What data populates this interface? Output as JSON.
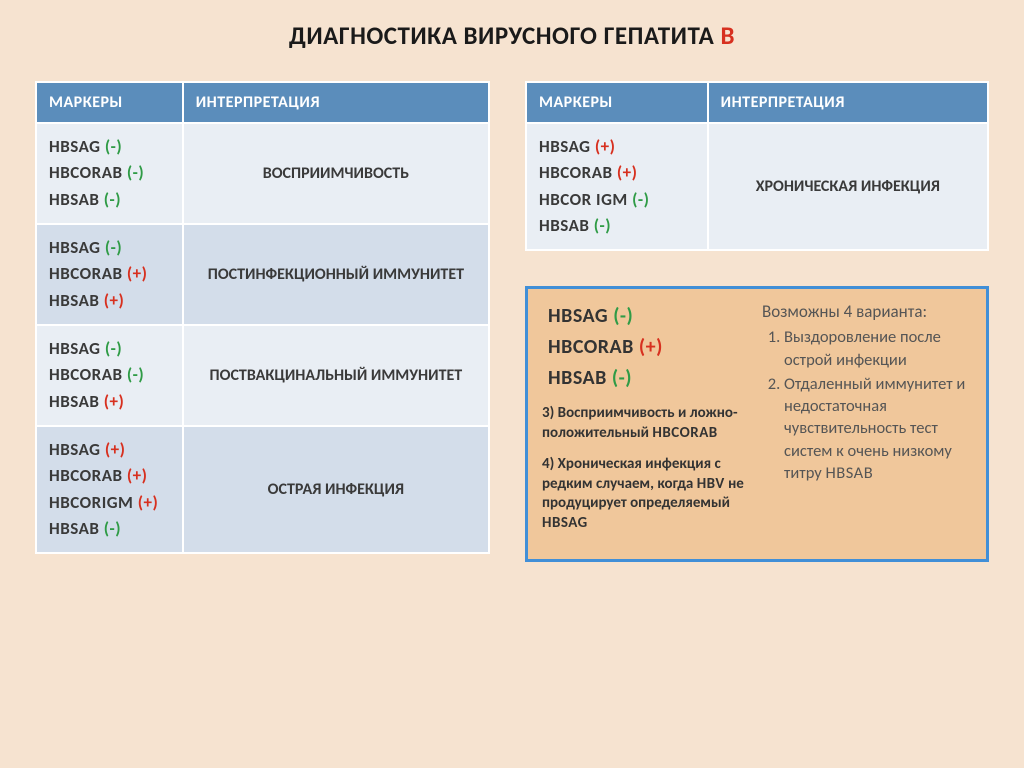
{
  "colors": {
    "page_bg": "#f6e3d0",
    "header_bg": "#5b8dbb",
    "header_text": "#ffffff",
    "band_a": "#e9eef4",
    "band_b": "#d3ddea",
    "positive": "#d7301f",
    "negative": "#2f9b46",
    "panel_border": "#418fd7",
    "panel_bg": "#f0c79b",
    "text": "#3a3a3a"
  },
  "title": {
    "main": "ДИАГНОСТИКА ВИРУСНОГО ГЕПАТИТА ",
    "accent": "В",
    "fontsize": 25
  },
  "headers": {
    "markers": "МАРКЕРЫ",
    "interp": "ИНТЕРПРЕТАЦИЯ"
  },
  "left_table": {
    "rows": [
      {
        "band": "a",
        "markers": [
          {
            "name": "HBsAg",
            "sign": "(-)",
            "sign_class": "neg"
          },
          {
            "name": "HBcorAB",
            "sign": "(-)",
            "sign_class": "neg"
          },
          {
            "name": "HBsAB",
            "sign": "(-)",
            "sign_class": "neg"
          }
        ],
        "interp": "Восприимчивость"
      },
      {
        "band": "b",
        "markers": [
          {
            "name": "HBsAg",
            "sign": "(-)",
            "sign_class": "neg"
          },
          {
            "name": "HBcorAB",
            "sign": "(+)",
            "sign_class": "pos"
          },
          {
            "name": "HBsAB",
            "sign": "(+)",
            "sign_class": "pos"
          }
        ],
        "interp": "Постинфекционный иммунитет"
      },
      {
        "band": "a",
        "markers": [
          {
            "name": "HBsAg",
            "sign": "(-)",
            "sign_class": "neg"
          },
          {
            "name": "HBcorAB",
            "sign": "(-)",
            "sign_class": "neg"
          },
          {
            "name": "HBsAB",
            "sign": "(+)",
            "sign_class": "pos"
          }
        ],
        "interp": "Поствакцинальный иммунитет"
      },
      {
        "band": "b",
        "markers": [
          {
            "name": "HBsAg",
            "sign": "(+)",
            "sign_class": "pos"
          },
          {
            "name": "HBcorAB",
            "sign": "(+)",
            "sign_class": "pos"
          },
          {
            "name": "HBcorIgM",
            "sign": "(+)",
            "sign_class": "pos"
          },
          {
            "name": "HBsAB",
            "sign": "(-)",
            "sign_class": "neg"
          }
        ],
        "interp": "Острая инфекция"
      }
    ]
  },
  "right_table": {
    "rows": [
      {
        "band": "a",
        "markers": [
          {
            "name": "HBsAg",
            "sign": "(+)",
            "sign_class": "pos"
          },
          {
            "name": "HBcorAB",
            "sign": "(+)",
            "sign_class": "pos"
          },
          {
            "name": "HBcor IgM",
            "sign": "(-)",
            "sign_class": "neg"
          },
          {
            "name": "HBsAB",
            "sign": "(-)",
            "sign_class": "neg"
          }
        ],
        "interp": "Хроническая инфекция"
      }
    ]
  },
  "panel": {
    "markers": [
      {
        "name": "HBsAg",
        "sign": "(-)",
        "sign_class": "neg"
      },
      {
        "name": "HBcorAB",
        "sign": "(+)",
        "sign_class": "pos"
      },
      {
        "name": "HBsAB",
        "sign": "(-)",
        "sign_class": "neg"
      }
    ],
    "note3": {
      "lead": "3) Восприимчивость и ложно-положительный ",
      "marker": "HBcorAB"
    },
    "note4": {
      "lead": "4) Хроническая инфекция с редким случаем, когда ",
      "m1": "HBV",
      "mid": " не продуцирует определяемый ",
      "m2": "HBsAg"
    },
    "possible_title": "Возможны 4 варианта:",
    "possible": [
      "Выздоровление после острой инфекции",
      {
        "text": "Отдаленный иммунитет и недостаточная чувствительность тест систем к очень низкому титру ",
        "marker": "HBsAB"
      }
    ]
  }
}
